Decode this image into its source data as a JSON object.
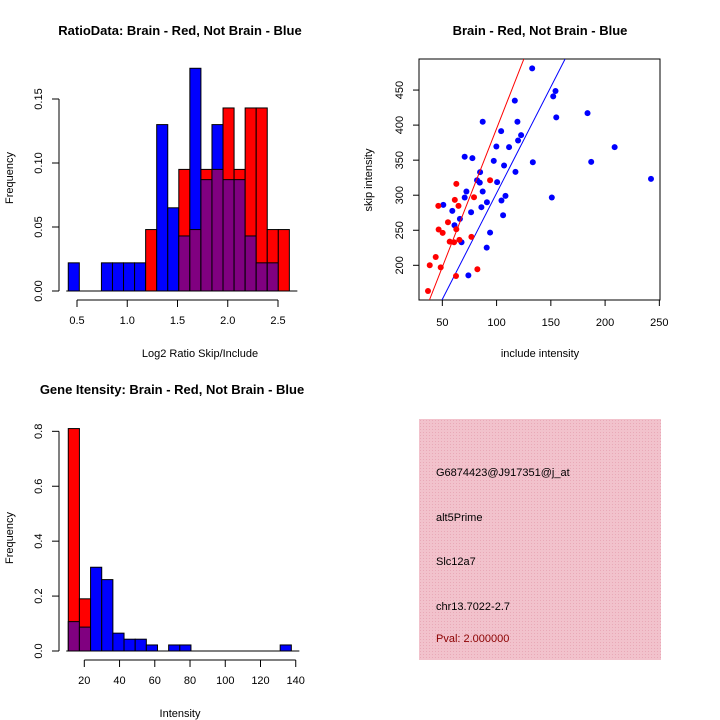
{
  "chart_data": [
    {
      "type": "bar",
      "subtype": "overlaid-histogram",
      "title": "RatioData: Brain - Red, Not Brain - Blue",
      "xlabel": "Log2 Ratio Skip/Include",
      "ylabel": "Frequency",
      "bin_start": 0.413,
      "bin_width": 0.11,
      "xticks": [
        "0.5",
        "1.0",
        "1.5",
        "2.0",
        "2.5"
      ],
      "xtick_values": [
        0.5,
        1.0,
        1.5,
        2.0,
        2.5
      ],
      "yticks": [
        "0.00",
        "0.05",
        "0.10",
        "0.15"
      ],
      "ytick_values": [
        0,
        0.05,
        0.1,
        0.15
      ],
      "series": [
        {
          "name": "Not Brain",
          "color": "#0000ff",
          "values": [
            0.022,
            0,
            0,
            0.022,
            0.022,
            0.022,
            0.022,
            0,
            0.13,
            0.065,
            0.043,
            0.174,
            0.087,
            0.13,
            0.087,
            0.087,
            0.043,
            0.022,
            0.022,
            0
          ]
        },
        {
          "name": "Brain",
          "color": "#ff0000",
          "values": [
            0,
            0,
            0,
            0,
            0,
            0,
            0,
            0.048,
            0,
            0,
            0.095,
            0.048,
            0.095,
            0.095,
            0.143,
            0.095,
            0.143,
            0.143,
            0.048,
            0.048
          ]
        }
      ],
      "overlap_color": "#800080"
    },
    {
      "type": "scatter",
      "title": "Brain - Red, Not Brain - Blue",
      "xlabel": "include intensity",
      "ylabel": "skip intensity",
      "xlim": [
        28.5,
        250.6
      ],
      "ylim": [
        150.5,
        494.3
      ],
      "xticks": [
        "50",
        "100",
        "150",
        "200",
        "250"
      ],
      "xtick_values": [
        50,
        100,
        150,
        200,
        250
      ],
      "yticks": [
        "200",
        "250",
        "300",
        "350",
        "400",
        "450"
      ],
      "ytick_values": [
        200,
        250,
        300,
        350,
        400,
        450
      ],
      "series": [
        {
          "name": "Not Brain",
          "color": "#0000ff",
          "line_slope": 3.03,
          "points": [
            [
              132.8,
              481
            ],
            [
              152.2,
              441
            ],
            [
              154.3,
              448.6
            ],
            [
              155,
              411
            ],
            [
              116.8,
              435
            ],
            [
              87.2,
              404.8
            ],
            [
              119.2,
              404.8
            ],
            [
              104.2,
              391.4
            ],
            [
              122.6,
              385.7
            ],
            [
              119.8,
              378
            ],
            [
              99.8,
              369.5
            ],
            [
              111.5,
              368.6
            ],
            [
              70.6,
              354.8
            ],
            [
              77.7,
              352.9
            ],
            [
              97.4,
              349
            ],
            [
              133.4,
              347
            ],
            [
              106.9,
              342.4
            ],
            [
              84.8,
              332.9
            ],
            [
              117.4,
              333.3
            ],
            [
              82,
              321.4
            ],
            [
              84.5,
              318
            ],
            [
              100.5,
              318.6
            ],
            [
              72.2,
              305.2
            ],
            [
              87.2,
              305.2
            ],
            [
              70.6,
              296.7
            ],
            [
              108.2,
              299
            ],
            [
              104.5,
              292.4
            ],
            [
              91.1,
              290
            ],
            [
              50.9,
              286.2
            ],
            [
              59.2,
              277.6
            ],
            [
              86,
              282.9
            ],
            [
              76.5,
              275.7
            ],
            [
              106,
              271.4
            ],
            [
              66.2,
              266.2
            ],
            [
              61.2,
              257.1
            ],
            [
              94,
              246.7
            ],
            [
              67.7,
              232.9
            ],
            [
              90.9,
              225.2
            ],
            [
              74,
              185.7
            ],
            [
              150.9,
              296.7
            ],
            [
              183.8,
              417.1
            ],
            [
              208.8,
              368.6
            ],
            [
              187.2,
              347.6
            ],
            [
              242.3,
              323.3
            ]
          ]
        },
        {
          "name": "Brain",
          "color": "#ff0000",
          "line_slope": 3.95,
          "points": [
            [
              36.8,
              163.3
            ],
            [
              38.4,
              200
            ],
            [
              43.9,
              211.9
            ],
            [
              48.5,
              197.1
            ],
            [
              46.6,
              251
            ],
            [
              50.3,
              246.2
            ],
            [
              46.3,
              284.8
            ],
            [
              55.2,
              261.4
            ],
            [
              62.9,
              316.2
            ],
            [
              61.5,
              293.3
            ],
            [
              64.9,
              284.8
            ],
            [
              62.9,
              251.4
            ],
            [
              56.8,
              233.8
            ],
            [
              60.8,
              232.9
            ],
            [
              65.7,
              236.2
            ],
            [
              76.8,
              240.5
            ],
            [
              79.2,
              297.1
            ],
            [
              94,
              321.4
            ],
            [
              82.3,
              194.3
            ],
            [
              62.6,
              184.8
            ]
          ]
        }
      ]
    },
    {
      "type": "bar",
      "subtype": "overlaid-histogram",
      "title": "Gene Itensity: Brain - Red, Not Brain - Blue",
      "xlabel": "Intensity",
      "ylabel": "Frequency",
      "bin_start": 10.9,
      "bin_width": 6.33,
      "xticks": [
        "20",
        "40",
        "60",
        "80",
        "100",
        "120",
        "140"
      ],
      "xtick_values": [
        20,
        40,
        60,
        80,
        100,
        120,
        140
      ],
      "yticks": [
        "0.0",
        "0.2",
        "0.4",
        "0.6",
        "0.8"
      ],
      "ytick_values": [
        0,
        0.2,
        0.4,
        0.6,
        0.8
      ],
      "series": [
        {
          "name": "Not Brain",
          "color": "#0000ff",
          "values": [
            0.107,
            0.087,
            0.305,
            0.26,
            0.065,
            0.043,
            0.043,
            0.022,
            0,
            0.022,
            0.022,
            0,
            0,
            0,
            0,
            0,
            0,
            0,
            0,
            0.022
          ]
        },
        {
          "name": "Brain",
          "color": "#ff0000",
          "values": [
            0.81,
            0.19,
            0,
            0,
            0,
            0,
            0,
            0,
            0,
            0,
            0,
            0,
            0,
            0,
            0,
            0,
            0,
            0,
            0,
            0
          ]
        }
      ],
      "overlap_color": "#800080"
    }
  ],
  "info_panel": {
    "probe_id": "G6874423@J917351@j_at",
    "event_type": "alt5Prime",
    "gene": "Slc12a7",
    "location": "chr13.7022-2.7",
    "pval": "Pval: 2.000000",
    "background_color": "#f2c2cc",
    "pval_color": "#8b0000"
  }
}
